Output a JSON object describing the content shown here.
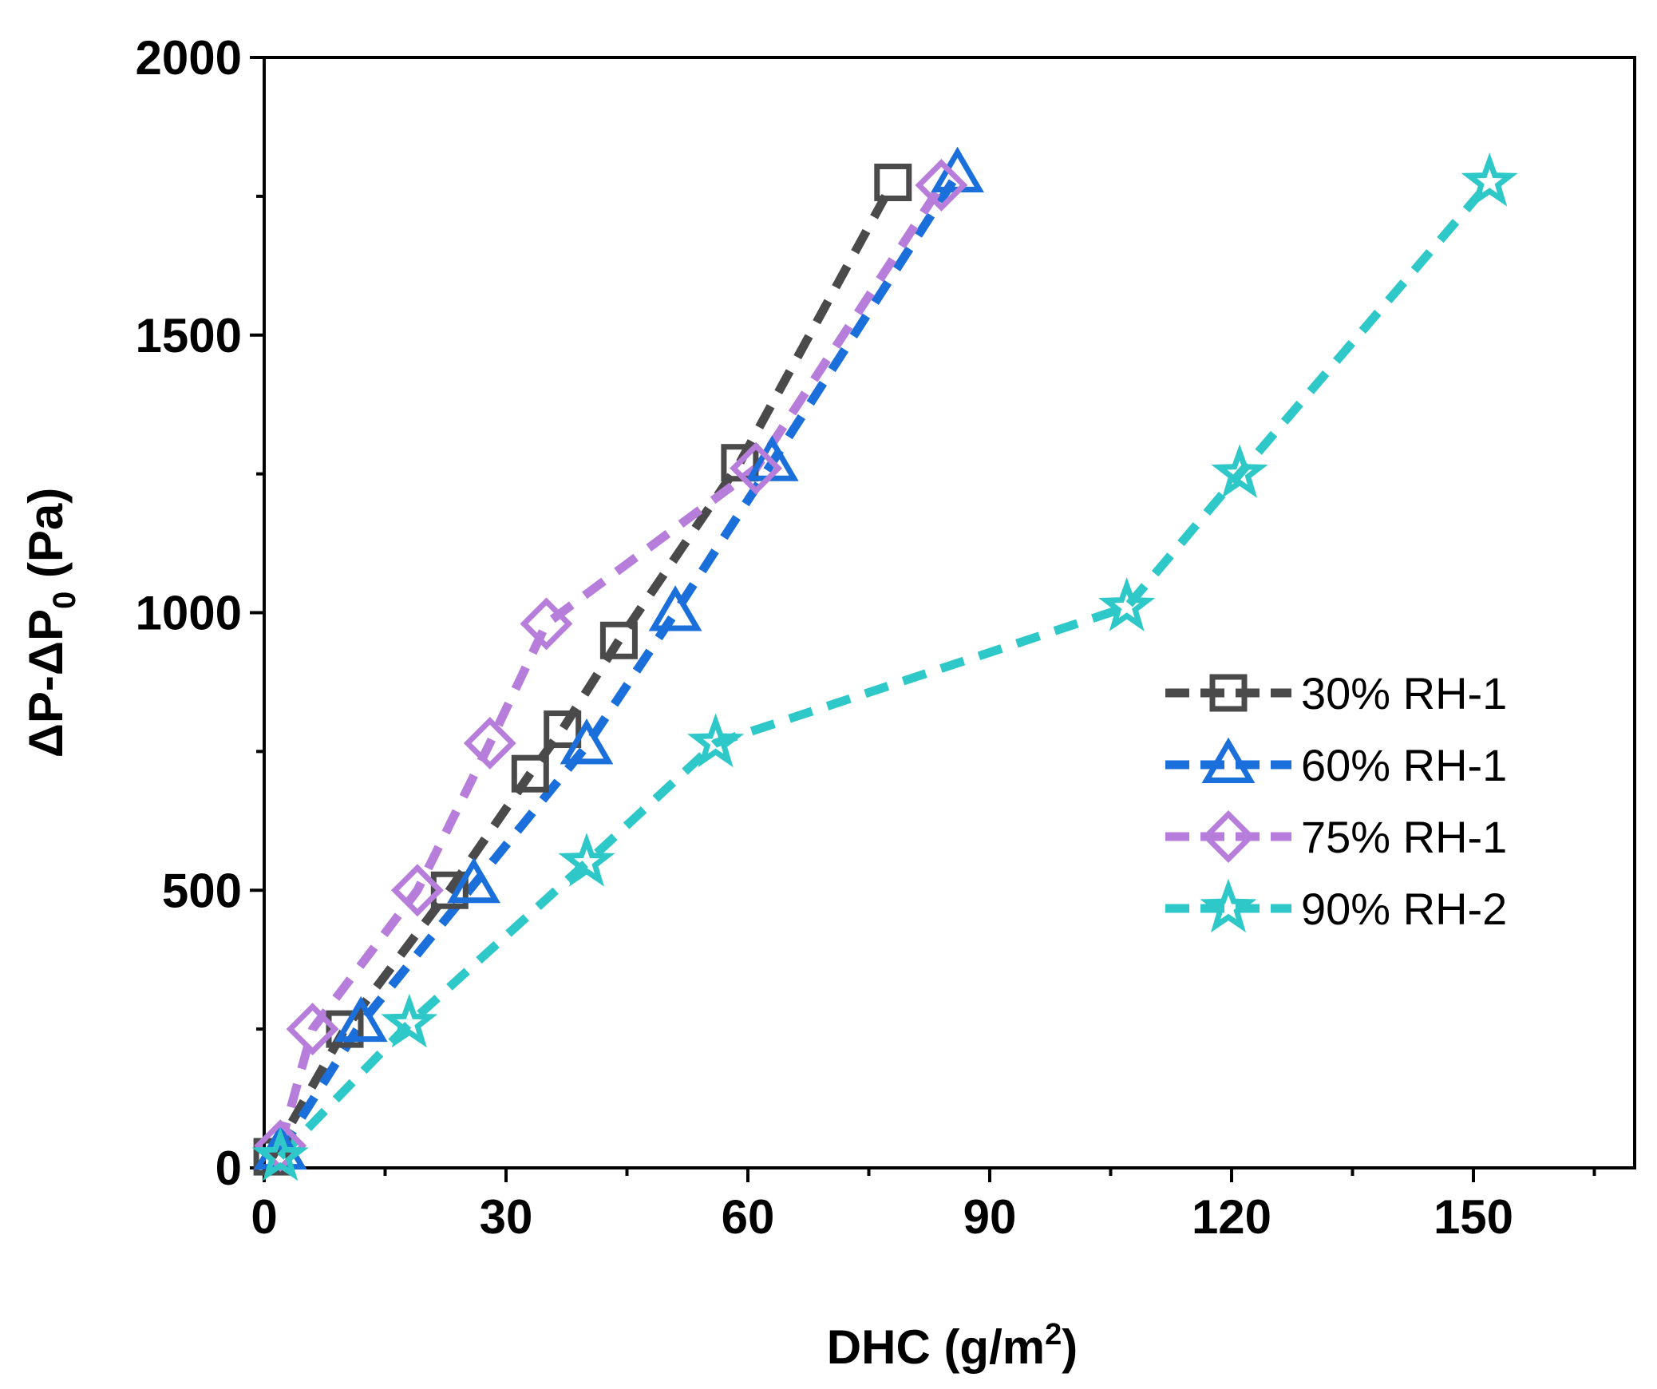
{
  "chart_data": {
    "type": "scatter",
    "title": "",
    "xlabel": {
      "base": "DHC (g/m",
      "sup": "2",
      "tail": ")"
    },
    "ylabel": {
      "base": "ΔP-ΔP",
      "sub": "0",
      "tail": " (Pa)"
    },
    "xlim": [
      0,
      170
    ],
    "ylim": [
      0,
      2000
    ],
    "xticks": [
      0,
      30,
      60,
      90,
      120,
      150
    ],
    "yticks": [
      0,
      500,
      1000,
      1500,
      2000
    ],
    "xtick_labels": [
      "0",
      "30",
      "60",
      "90",
      "120",
      "150"
    ],
    "ytick_labels": [
      "0",
      "500",
      "1000",
      "1500",
      "2000"
    ],
    "legend_position": "right",
    "series": [
      {
        "name": "30% RH-1",
        "marker": "square",
        "color": "#4a4a4a",
        "x": [
          1,
          10,
          23,
          33,
          37,
          44,
          59,
          78
        ],
        "y": [
          20,
          250,
          500,
          710,
          790,
          950,
          1270,
          1775
        ]
      },
      {
        "name": "60% RH-1",
        "marker": "triangle",
        "color": "#1a6fdb",
        "x": [
          2,
          12,
          26,
          40,
          51,
          63,
          86
        ],
        "y": [
          30,
          260,
          510,
          760,
          1000,
          1270,
          1790
        ]
      },
      {
        "name": "75% RH-1",
        "marker": "diamond",
        "color": "#b77ddb",
        "x": [
          2,
          6,
          19,
          28,
          35,
          61,
          84
        ],
        "y": [
          40,
          250,
          500,
          765,
          980,
          1260,
          1770
        ]
      },
      {
        "name": "90% RH-2",
        "marker": "star",
        "color": "#2ec8c8",
        "x": [
          2,
          18,
          40,
          56,
          107,
          121,
          152
        ],
        "y": [
          20,
          260,
          550,
          765,
          1010,
          1250,
          1775
        ]
      }
    ]
  }
}
